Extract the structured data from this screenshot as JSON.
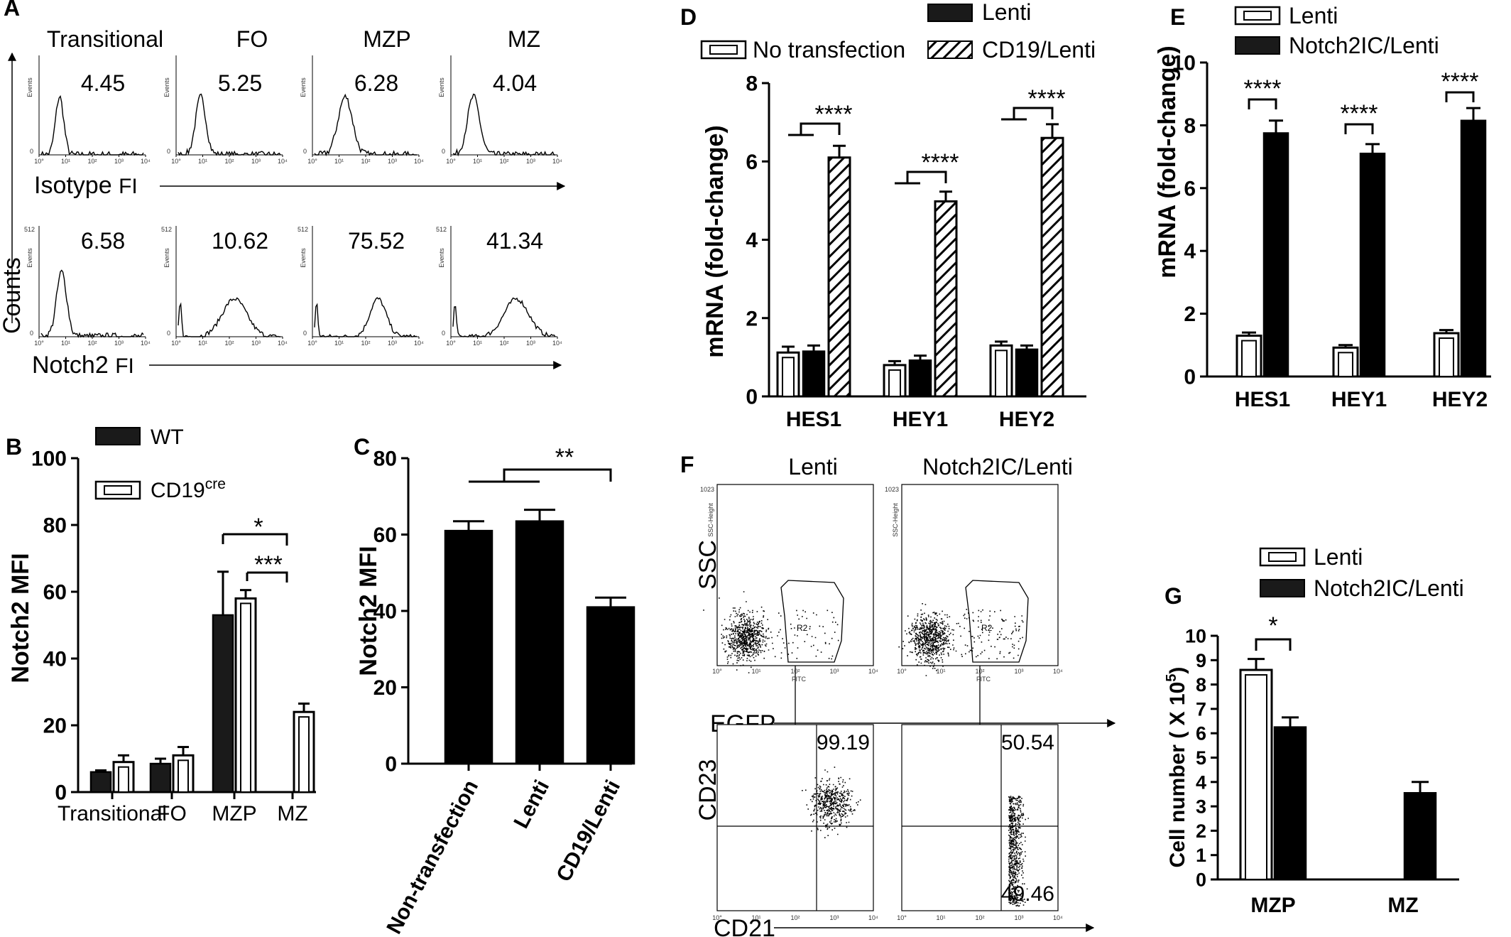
{
  "panel_labels": {
    "a": "A",
    "b": "B",
    "c": "C",
    "d": "D",
    "e": "E",
    "f": "F",
    "g": "G"
  },
  "chart_data": [
    {
      "id": "A",
      "type": "histogram-grid",
      "columns": [
        "Transitional",
        "FO",
        "MZP",
        "MZ"
      ],
      "rows": [
        {
          "label": "Isotype",
          "label_suffix": "FI",
          "values": [
            "4.45",
            "5.25",
            "6.28",
            "4.04"
          ]
        },
        {
          "label": "Notch2",
          "label_suffix": "FI",
          "values": [
            "6.58",
            "10.62",
            "75.52",
            "41.34"
          ]
        }
      ],
      "ylabel": "Counts",
      "axis_small": {
        "ylabel": "Events",
        "ytop": "512",
        "ybottom": "0",
        "xticks": [
          "10°",
          "10¹",
          "10²",
          "10³",
          "10⁴"
        ]
      }
    },
    {
      "id": "B",
      "type": "bar",
      "categories": [
        "Transitional",
        "FO",
        "MZP",
        "MZ"
      ],
      "series": [
        {
          "name": "WT",
          "values": [
            6,
            8.5,
            53,
            null
          ],
          "errors": [
            0.5,
            1.5,
            13,
            null
          ],
          "color": "#1a1a1a"
        },
        {
          "name": "CD19",
          "name_sup": "cre",
          "values": [
            9,
            11,
            58,
            24
          ],
          "errors": [
            2,
            2.5,
            2.5,
            2.5
          ],
          "color": "#ffffff"
        }
      ],
      "ylabel": "Notch2 MFI",
      "ylim": [
        0,
        100
      ],
      "yticks": [
        "0",
        "20",
        "40",
        "60",
        "80",
        "100"
      ],
      "significance": [
        "*",
        "***"
      ]
    },
    {
      "id": "C",
      "type": "bar",
      "categories": [
        "Non-transfection",
        "Lenti",
        "CD19/Lenti"
      ],
      "values": [
        61,
        63.5,
        41
      ],
      "errors": [
        2.5,
        3,
        2.5
      ],
      "ylabel": "Notch2 MFI",
      "ylim": [
        0,
        80
      ],
      "yticks": [
        "0",
        "20",
        "40",
        "60",
        "80"
      ],
      "significance": [
        "**"
      ]
    },
    {
      "id": "D",
      "type": "bar",
      "categories": [
        "HES1",
        "HEY1",
        "HEY2"
      ],
      "series": [
        {
          "name": "No transfection",
          "values": [
            1.12,
            0.8,
            1.3
          ],
          "errors": [
            0.15,
            0.1,
            0.1
          ]
        },
        {
          "name": "Lenti",
          "values": [
            1.15,
            0.92,
            1.2
          ],
          "errors": [
            0.15,
            0.12,
            0.1
          ]
        },
        {
          "name": "CD19/Lenti",
          "values": [
            6.1,
            4.98,
            6.6
          ],
          "errors": [
            0.3,
            0.25,
            0.35
          ]
        }
      ],
      "ylabel": "mRNA (fold-change)",
      "ylim": [
        0,
        8
      ],
      "yticks": [
        "0",
        "2",
        "4",
        "6",
        "8"
      ],
      "significance": [
        "****",
        "****",
        "****"
      ]
    },
    {
      "id": "E",
      "type": "bar",
      "categories": [
        "HES1",
        "HEY1",
        "HEY2"
      ],
      "series": [
        {
          "name": "Lenti",
          "values": [
            1.3,
            0.92,
            1.38
          ],
          "errors": [
            0.1,
            0.08,
            0.1
          ]
        },
        {
          "name": "Notch2IC/Lenti",
          "values": [
            7.75,
            7.1,
            8.15
          ],
          "errors": [
            0.4,
            0.3,
            0.4
          ]
        }
      ],
      "ylabel": "mRNA (fold-change)",
      "ylim": [
        0,
        10
      ],
      "yticks": [
        "0",
        "2",
        "4",
        "6",
        "8",
        "10"
      ],
      "significance": [
        "****",
        "****",
        "****"
      ]
    },
    {
      "id": "F",
      "type": "flow-scatter",
      "columns": [
        "Lenti",
        "Notch2IC/Lenti"
      ],
      "top_ylabel": "SSC",
      "top_xlabel": "EGFP",
      "bottom_ylabel": "CD23",
      "bottom_xlabel": "CD21",
      "gate": "R2",
      "quadrant_values": [
        {
          "upper_right": "99.19"
        },
        {
          "upper_right": "50.54",
          "lower_right": "49.46"
        }
      ],
      "axis_small": {
        "top_ylabel": "SSC-Height",
        "top_xlabel": "FITC",
        "top_ymax": "1023",
        "xticks": [
          "10°",
          "10¹",
          "10²",
          "10³",
          "10⁴"
        ]
      }
    },
    {
      "id": "G",
      "type": "bar",
      "categories": [
        "MZP",
        "MZ"
      ],
      "series": [
        {
          "name": "Lenti",
          "values": [
            8.6,
            null
          ],
          "errors": [
            0.45,
            null
          ]
        },
        {
          "name": "Notch2IC/Lenti",
          "values": [
            6.25,
            3.55
          ],
          "errors": [
            0.4,
            0.45
          ]
        }
      ],
      "ylabel": "Cell number",
      "ylabel_unit": "( X 10",
      "ylabel_exp": "5",
      "ylabel_close": ")",
      "ylim": [
        0,
        10
      ],
      "yticks": [
        "0",
        "1",
        "2",
        "3",
        "4",
        "5",
        "6",
        "7",
        "8",
        "9",
        "10"
      ],
      "significance": [
        "*"
      ]
    }
  ]
}
